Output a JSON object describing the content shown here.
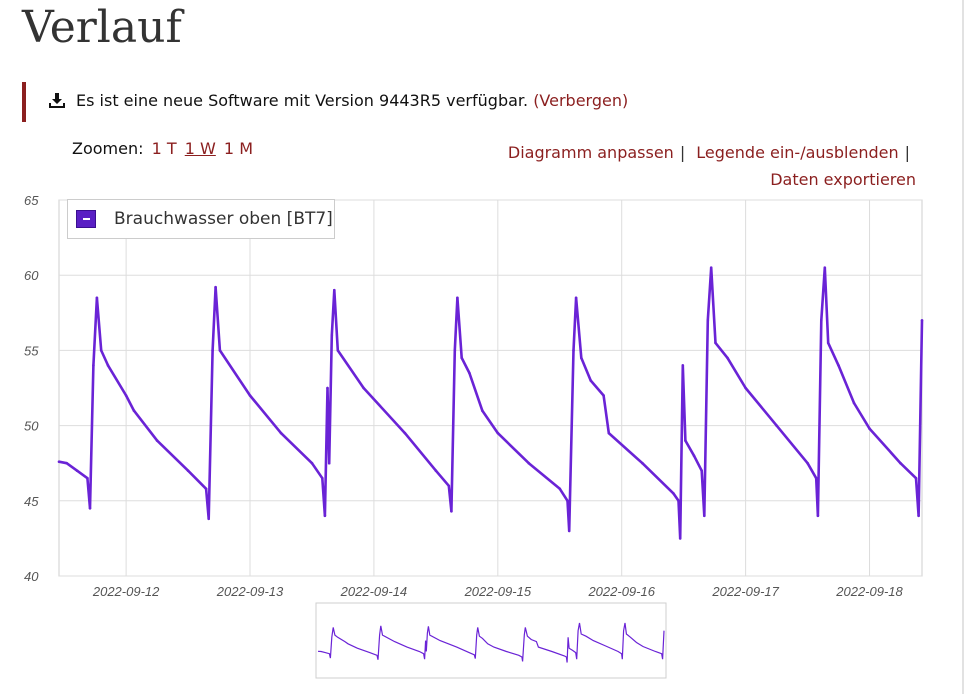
{
  "page": {
    "title": "Verlauf"
  },
  "notice": {
    "icon": "download-icon",
    "text": "Es ist eine neue Software mit Version 9443R5 verfügbar.",
    "hide_label": "(Verbergen)"
  },
  "zoom": {
    "label": "Zoomen:",
    "options": [
      "1 T",
      "1 W",
      "1 M"
    ],
    "selected": "1 W"
  },
  "actions": {
    "customize": "Diagramm anpassen",
    "toggle_legend": "Legende ein-/ausblenden",
    "export": "Daten exportieren",
    "separator": "|"
  },
  "colors": {
    "series": "#6a23d6",
    "link": "#8b1f1f",
    "grid": "#dddddd"
  },
  "chart_data": {
    "type": "line",
    "grid": true,
    "legend_position": "top-left",
    "y_ticks": [
      40,
      45,
      50,
      55,
      60,
      65
    ],
    "ylim": [
      40,
      65
    ],
    "x_range": [
      "2022-09-11T11:00",
      "2022-09-18T10:10"
    ],
    "x_ticks": [
      "2022-09-12",
      "2022-09-13",
      "2022-09-14",
      "2022-09-15",
      "2022-09-16",
      "2022-09-17",
      "2022-09-18"
    ],
    "series": [
      {
        "name": "Brauchwasser oben [BT7]",
        "points": [
          [
            "2022-09-11T11:00",
            47.6
          ],
          [
            "2022-09-11T12:30",
            47.5
          ],
          [
            "2022-09-11T14:30",
            47.0
          ],
          [
            "2022-09-11T16:30",
            46.5
          ],
          [
            "2022-09-11T17:00",
            44.5
          ],
          [
            "2022-09-11T17:40",
            54.0
          ],
          [
            "2022-09-11T18:20",
            58.5
          ],
          [
            "2022-09-11T19:10",
            55.0
          ],
          [
            "2022-09-11T20:30",
            54.0
          ],
          [
            "2022-09-12T00:00",
            52.0
          ],
          [
            "2022-09-12T01:30",
            51.0
          ],
          [
            "2022-09-12T06:00",
            49.0
          ],
          [
            "2022-09-12T12:00",
            47.0
          ],
          [
            "2022-09-12T15:30",
            45.8
          ],
          [
            "2022-09-12T16:00",
            43.8
          ],
          [
            "2022-09-12T16:45",
            55.0
          ],
          [
            "2022-09-12T17:20",
            59.2
          ],
          [
            "2022-09-12T18:10",
            55.0
          ],
          [
            "2022-09-13T00:00",
            52.0
          ],
          [
            "2022-09-13T06:00",
            49.5
          ],
          [
            "2022-09-13T12:00",
            47.5
          ],
          [
            "2022-09-13T14:00",
            46.5
          ],
          [
            "2022-09-13T14:30",
            44.0
          ],
          [
            "2022-09-13T15:00",
            52.5
          ],
          [
            "2022-09-13T15:20",
            47.5
          ],
          [
            "2022-09-13T15:50",
            56.0
          ],
          [
            "2022-09-13T16:20",
            59.0
          ],
          [
            "2022-09-13T17:00",
            55.0
          ],
          [
            "2022-09-13T22:00",
            52.5
          ],
          [
            "2022-09-14T06:00",
            49.5
          ],
          [
            "2022-09-14T12:00",
            47.0
          ],
          [
            "2022-09-14T14:30",
            46.0
          ],
          [
            "2022-09-14T15:00",
            44.3
          ],
          [
            "2022-09-14T15:40",
            55.0
          ],
          [
            "2022-09-14T16:10",
            58.5
          ],
          [
            "2022-09-14T17:00",
            54.5
          ],
          [
            "2022-09-14T18:30",
            53.5
          ],
          [
            "2022-09-14T21:00",
            51.0
          ],
          [
            "2022-09-15T00:00",
            49.5
          ],
          [
            "2022-09-15T06:00",
            47.5
          ],
          [
            "2022-09-15T12:00",
            45.8
          ],
          [
            "2022-09-15T13:30",
            45.0
          ],
          [
            "2022-09-15T13:50",
            43.0
          ],
          [
            "2022-09-15T14:40",
            55.0
          ],
          [
            "2022-09-15T15:10",
            58.5
          ],
          [
            "2022-09-15T16:10",
            54.5
          ],
          [
            "2022-09-15T18:00",
            53.0
          ],
          [
            "2022-09-15T20:30",
            52.0
          ],
          [
            "2022-09-15T21:30",
            49.5
          ],
          [
            "2022-09-16T04:00",
            47.5
          ],
          [
            "2022-09-16T10:00",
            45.5
          ],
          [
            "2022-09-16T11:00",
            45.0
          ],
          [
            "2022-09-16T11:20",
            42.5
          ],
          [
            "2022-09-16T11:50",
            54.0
          ],
          [
            "2022-09-16T12:20",
            49.0
          ],
          [
            "2022-09-16T14:00",
            48.0
          ],
          [
            "2022-09-16T15:30",
            47.0
          ],
          [
            "2022-09-16T16:00",
            44.0
          ],
          [
            "2022-09-16T16:40",
            57.0
          ],
          [
            "2022-09-16T17:20",
            60.5
          ],
          [
            "2022-09-16T18:10",
            55.5
          ],
          [
            "2022-09-16T20:30",
            54.5
          ],
          [
            "2022-09-17T00:00",
            52.5
          ],
          [
            "2022-09-17T06:00",
            50.0
          ],
          [
            "2022-09-17T12:00",
            47.5
          ],
          [
            "2022-09-17T13:40",
            46.5
          ],
          [
            "2022-09-17T14:00",
            44.0
          ],
          [
            "2022-09-17T14:40",
            57.0
          ],
          [
            "2022-09-17T15:20",
            60.5
          ],
          [
            "2022-09-17T16:00",
            55.5
          ],
          [
            "2022-09-17T18:00",
            54.0
          ],
          [
            "2022-09-17T21:00",
            51.5
          ],
          [
            "2022-09-18T00:00",
            49.8
          ],
          [
            "2022-09-18T06:00",
            47.5
          ],
          [
            "2022-09-18T09:00",
            46.5
          ],
          [
            "2022-09-18T09:30",
            44.0
          ],
          [
            "2022-09-18T10:10",
            57.0
          ]
        ]
      }
    ]
  }
}
